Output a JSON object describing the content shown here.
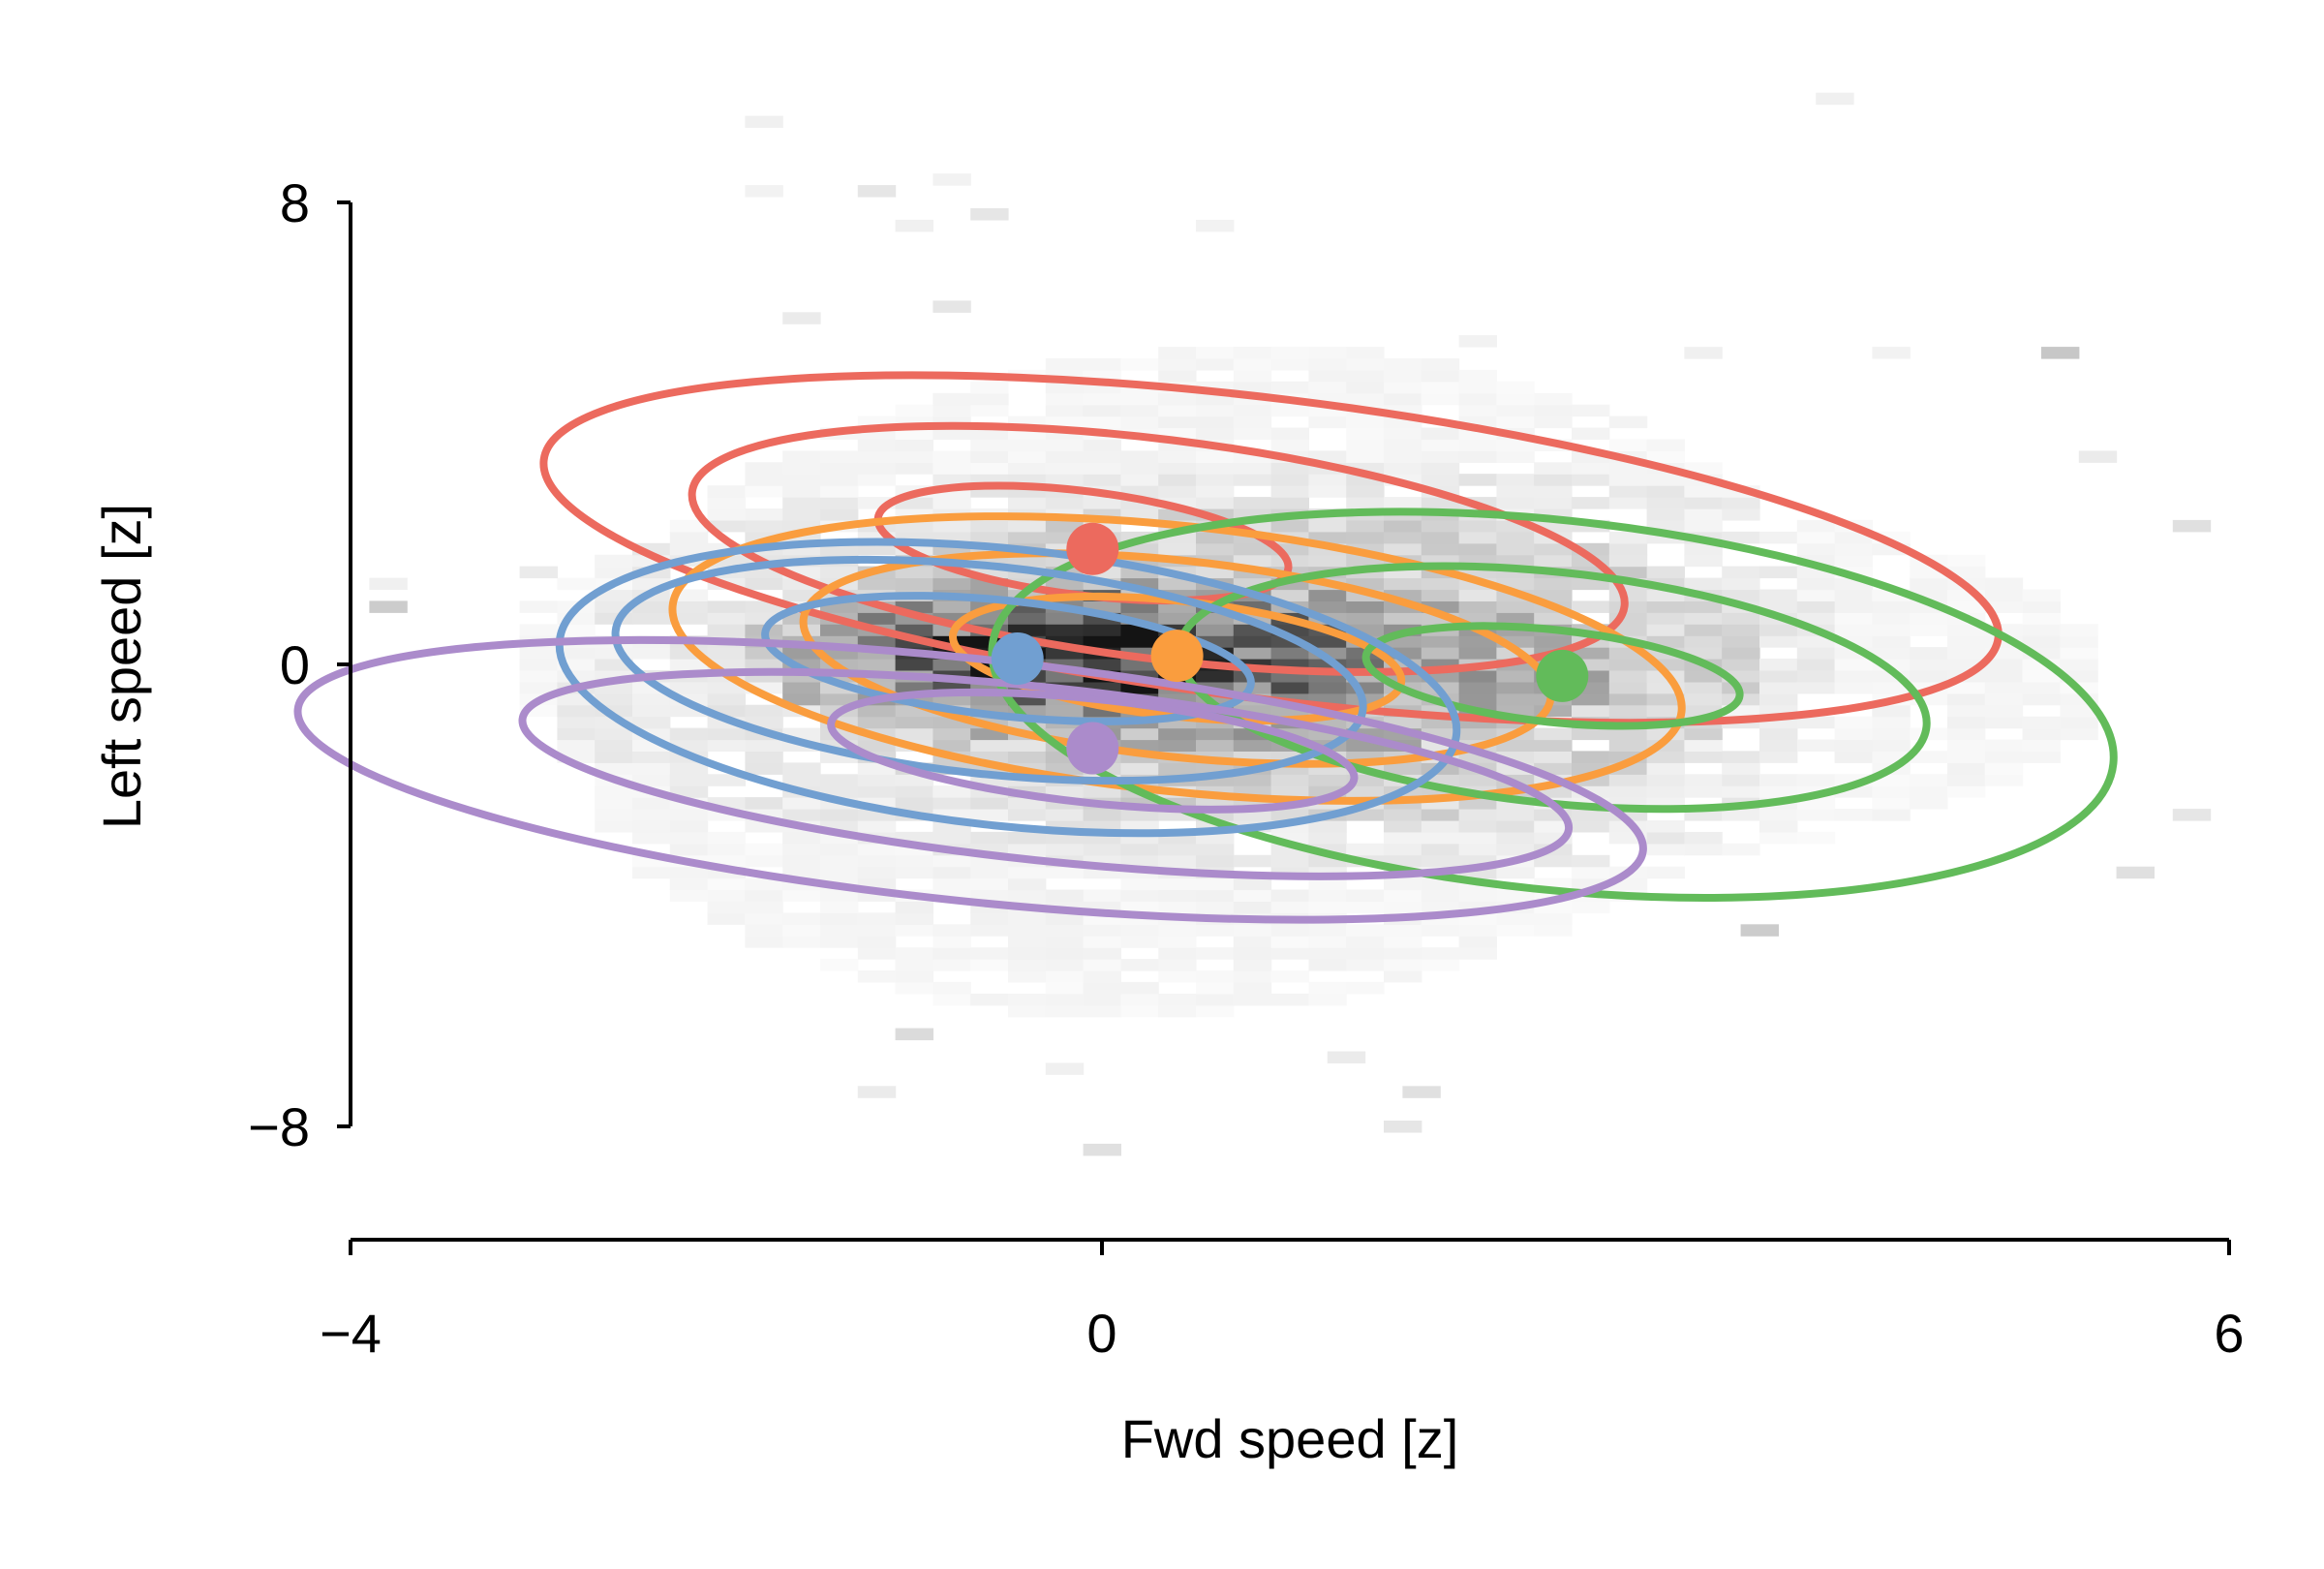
{
  "chart_data": {
    "type": "scatter",
    "xlabel": "Fwd speed [z]",
    "ylabel": "Left speed [z]",
    "xlim": [
      -4,
      6
    ],
    "ylim": [
      -9,
      9
    ],
    "xticks": [
      -4,
      0,
      6
    ],
    "yticks": [
      8,
      0,
      -8
    ],
    "xtick_labels": [
      "−4",
      "0",
      "6"
    ],
    "ytick_labels": [
      "8",
      "0",
      "−8"
    ],
    "grid": false,
    "background_histogram": {
      "color": "#000000",
      "bins": [
        {
          "x": -1.8,
          "y": 9.4,
          "d": 0.06
        },
        {
          "x": -1.8,
          "y": 8.2,
          "d": 0.05
        },
        {
          "x": -1.2,
          "y": 8.2,
          "d": 0.1
        },
        {
          "x": -0.8,
          "y": 8.4,
          "d": 0.05
        },
        {
          "x": -1.0,
          "y": 7.6,
          "d": 0.06
        },
        {
          "x": -0.6,
          "y": 7.8,
          "d": 0.1
        },
        {
          "x": 0.6,
          "y": 7.6,
          "d": 0.05
        },
        {
          "x": -0.8,
          "y": 6.2,
          "d": 0.1
        },
        {
          "x": -1.6,
          "y": 6.0,
          "d": 0.08
        },
        {
          "x": 3.9,
          "y": 9.8,
          "d": 0.06
        },
        {
          "x": 2.0,
          "y": 5.6,
          "d": 0.05
        },
        {
          "x": 3.2,
          "y": 5.4,
          "d": 0.06
        },
        {
          "x": 4.2,
          "y": 5.4,
          "d": 0.05
        },
        {
          "x": 5.1,
          "y": 5.4,
          "d": 0.22
        },
        {
          "x": 5.3,
          "y": 3.6,
          "d": 0.08
        },
        {
          "x": 5.8,
          "y": 2.4,
          "d": 0.12
        },
        {
          "x": 5.8,
          "y": -2.6,
          "d": 0.1
        },
        {
          "x": 5.5,
          "y": -3.6,
          "d": 0.12
        },
        {
          "x": 3.5,
          "y": -4.6,
          "d": 0.2
        },
        {
          "x": -3.0,
          "y": 1.6,
          "d": 0.08
        },
        {
          "x": -3.8,
          "y": 1.4,
          "d": 0.06
        },
        {
          "x": -3.8,
          "y": 1.0,
          "d": 0.2
        },
        {
          "x": -1.0,
          "y": -6.4,
          "d": 0.14
        },
        {
          "x": -0.2,
          "y": -7.0,
          "d": 0.06
        },
        {
          "x": 0.0,
          "y": -8.4,
          "d": 0.12
        },
        {
          "x": 1.7,
          "y": -7.4,
          "d": 0.12
        },
        {
          "x": 1.6,
          "y": -8.0,
          "d": 0.1
        },
        {
          "x": 1.3,
          "y": -6.8,
          "d": 0.08
        },
        {
          "x": -1.2,
          "y": -7.4,
          "d": 0.08
        }
      ],
      "regions": [
        {
          "cx": 0.9,
          "cy": 0.0,
          "rx": 2.6,
          "ry": 2.8,
          "angle": -8,
          "d": 0.1
        },
        {
          "cx": 1.1,
          "cy": -0.1,
          "rx": 4.3,
          "ry": 3.6,
          "angle": -8,
          "d": 0.05
        },
        {
          "cx": 0.5,
          "cy": -0.3,
          "rx": 3.3,
          "ry": 5.8,
          "angle": -5,
          "d": 0.05
        },
        {
          "cx": 0.4,
          "cy": 0.0,
          "rx": 2.4,
          "ry": 1.5,
          "angle": -8,
          "d": 0.15
        },
        {
          "cx": 0.0,
          "cy": 0.2,
          "rx": 1.6,
          "ry": 1.0,
          "angle": -8,
          "d": 0.22
        },
        {
          "cx": -0.2,
          "cy": 0.1,
          "rx": 0.9,
          "ry": 0.6,
          "angle": -8,
          "d": 0.3
        }
      ]
    },
    "series": [
      {
        "color": "#ec6a5e",
        "mean": [
          -0.05,
          2.0
        ],
        "ellipses": [
          {
            "cx": -0.1,
            "cy": 2.1,
            "rx": 1.1,
            "ry": 0.9,
            "angle": -7
          },
          {
            "cx": 0.3,
            "cy": 2.0,
            "rx": 2.5,
            "ry": 1.9,
            "angle": -7
          },
          {
            "cx": 0.9,
            "cy": 2.0,
            "rx": 3.9,
            "ry": 2.6,
            "angle": -7
          }
        ]
      },
      {
        "color": "#fa9d3e",
        "mean": [
          0.4,
          0.15
        ],
        "ellipses": [
          {
            "cx": 0.4,
            "cy": 0.1,
            "rx": 1.2,
            "ry": 1.0,
            "angle": -6
          },
          {
            "cx": 0.4,
            "cy": 0.1,
            "rx": 2.0,
            "ry": 1.7,
            "angle": -6
          },
          {
            "cx": 0.4,
            "cy": 0.1,
            "rx": 2.7,
            "ry": 2.3,
            "angle": -6
          }
        ]
      },
      {
        "color": "#62bb5a",
        "mean": [
          2.45,
          -0.2
        ],
        "ellipses": [
          {
            "cx": 2.4,
            "cy": -0.2,
            "rx": 1.0,
            "ry": 0.8,
            "angle": -6
          },
          {
            "cx": 2.4,
            "cy": -0.4,
            "rx": 2.0,
            "ry": 2.0,
            "angle": -6
          },
          {
            "cx": 2.4,
            "cy": -0.7,
            "rx": 3.0,
            "ry": 3.2,
            "angle": -6
          }
        ]
      },
      {
        "color": "#719fd1",
        "mean": [
          -0.45,
          0.1
        ],
        "ellipses": [
          {
            "cx": -0.5,
            "cy": 0.1,
            "rx": 1.3,
            "ry": 1.0,
            "angle": -6
          },
          {
            "cx": -0.6,
            "cy": -0.1,
            "rx": 2.0,
            "ry": 1.8,
            "angle": -6
          },
          {
            "cx": -0.5,
            "cy": -0.4,
            "rx": 2.4,
            "ry": 2.4,
            "angle": -6
          }
        ]
      },
      {
        "color": "#ab8bcb",
        "mean": [
          -0.05,
          -1.45
        ],
        "ellipses": [
          {
            "cx": -0.05,
            "cy": -1.5,
            "rx": 1.4,
            "ry": 0.9,
            "angle": -6
          },
          {
            "cx": -0.3,
            "cy": -1.9,
            "rx": 2.8,
            "ry": 1.5,
            "angle": -6
          },
          {
            "cx": -0.7,
            "cy": -2.0,
            "rx": 3.6,
            "ry": 2.1,
            "angle": -6
          }
        ]
      }
    ]
  }
}
